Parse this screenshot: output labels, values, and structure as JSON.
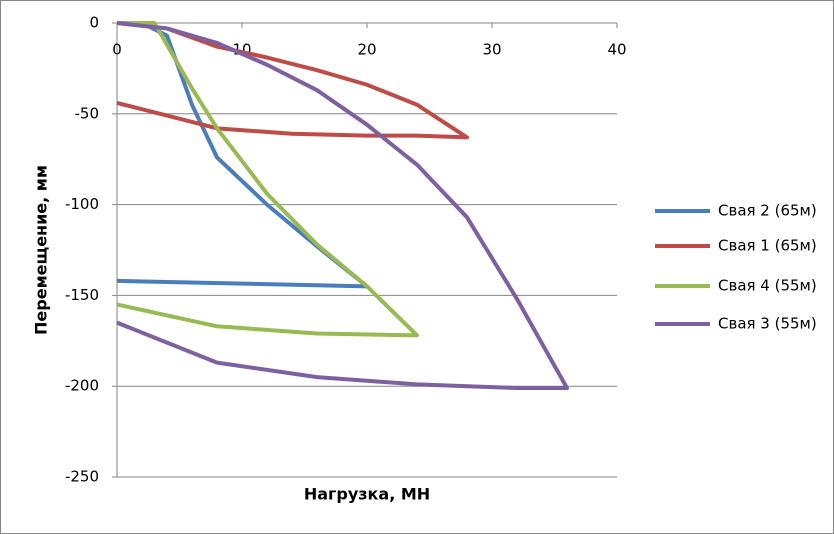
{
  "chart_data": {
    "type": "line",
    "x_label": "Нагрузка, МН",
    "y_label": "Перемещение, мм",
    "xlim": [
      0,
      40
    ],
    "xticks": [
      0,
      10,
      20,
      30,
      40
    ],
    "ylim": [
      -250,
      0
    ],
    "yticks": [
      0,
      -50,
      -100,
      -150,
      -200,
      -250
    ],
    "grid": true,
    "legend": "right",
    "series": [
      {
        "name": "Свая 2 (65м)",
        "color": "#4a7ebb",
        "x": [
          0,
          2,
          4,
          6,
          8,
          12,
          16,
          20,
          0
        ],
        "values": [
          0,
          0,
          -7,
          -45,
          -74,
          -100,
          -123,
          -145,
          -142
        ]
      },
      {
        "name": "Свая 1 (65м)",
        "color": "#be4b48",
        "x": [
          0,
          4,
          8,
          12,
          16,
          20,
          24,
          28,
          24,
          20,
          14,
          8,
          4,
          0
        ],
        "values": [
          0,
          -3,
          -13,
          -19,
          -26,
          -34,
          -45,
          -63,
          -62,
          -62,
          -61,
          -58,
          -51,
          -44
        ]
      },
      {
        "name": "Свая 4 (55м)",
        "color": "#98b954",
        "x": [
          0,
          3,
          6,
          8,
          12,
          16,
          20,
          24,
          16,
          8,
          0
        ],
        "values": [
          0,
          0,
          -36,
          -58,
          -94,
          -122,
          -145,
          -172,
          -171,
          -167,
          -155
        ]
      },
      {
        "name": "Свая 3 (55м)",
        "color": "#7d60a0",
        "x": [
          0,
          4,
          8,
          12,
          16,
          20,
          24,
          28,
          32,
          36,
          32,
          24,
          16,
          8,
          0
        ],
        "values": [
          0,
          -3,
          -11,
          -23,
          -37,
          -56,
          -78,
          -107,
          -152,
          -201,
          -201,
          -199,
          -195,
          -187,
          -165
        ]
      }
    ]
  }
}
